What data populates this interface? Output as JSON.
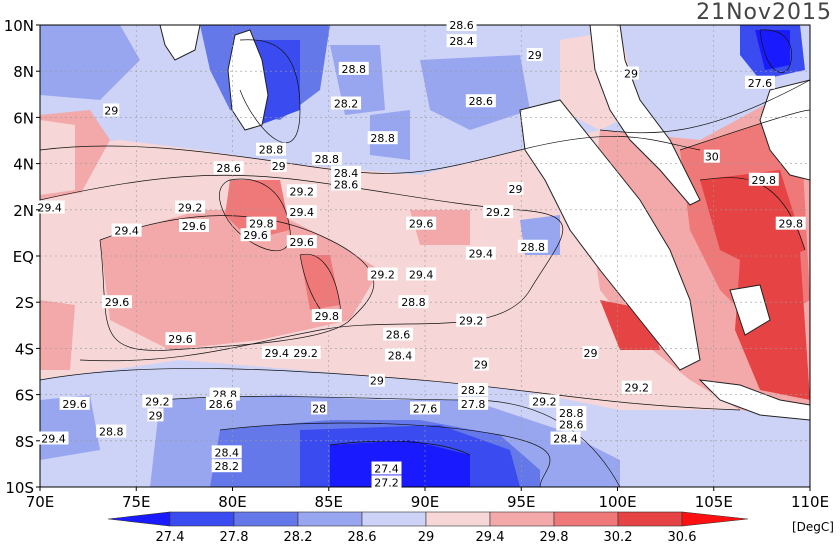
{
  "title": "21Nov2015",
  "unit_label": "[DegC]",
  "lat_labels": [
    "10N",
    "8N",
    "6N",
    "4N",
    "2N",
    "EQ",
    "2S",
    "4S",
    "6S",
    "8S",
    "10S"
  ],
  "lon_labels": [
    "70E",
    "75E",
    "80E",
    "85E",
    "90E",
    "95E",
    "100E",
    "105E",
    "110E"
  ],
  "colorbar": {
    "labels": [
      "27.4",
      "27.8",
      "28.2",
      "28.6",
      "29",
      "29.4",
      "29.8",
      "30.2",
      "30.6"
    ],
    "colors": [
      "#1a1aff",
      "#3a4cf0",
      "#6478ea",
      "#98a6f0",
      "#cdd3f6",
      "#f6d6d6",
      "#f3a9a9",
      "#ef7878",
      "#e64444",
      "#ff1010"
    ]
  },
  "contour_labels": [
    {
      "text": "28.6",
      "lon": 91.9,
      "lat": 10.0
    },
    {
      "text": "28.4",
      "lon": 91.9,
      "lat": 9.3
    },
    {
      "text": "29",
      "lon": 95.7,
      "lat": 8.7
    },
    {
      "text": "28.8",
      "lon": 86.3,
      "lat": 8.1
    },
    {
      "text": "29",
      "lon": 100.7,
      "lat": 7.9
    },
    {
      "text": "27.6",
      "lon": 107.4,
      "lat": 7.5
    },
    {
      "text": "28.2",
      "lon": 85.9,
      "lat": 6.6
    },
    {
      "text": "28.6",
      "lon": 92.9,
      "lat": 6.7
    },
    {
      "text": "29",
      "lon": 73.7,
      "lat": 6.3
    },
    {
      "text": "28.8",
      "lon": 87.8,
      "lat": 5.1
    },
    {
      "text": "28.8",
      "lon": 82.0,
      "lat": 4.6
    },
    {
      "text": "28.8",
      "lon": 84.9,
      "lat": 4.2
    },
    {
      "text": "28.6",
      "lon": 79.8,
      "lat": 3.8
    },
    {
      "text": "29",
      "lon": 82.4,
      "lat": 3.9
    },
    {
      "text": "28.4",
      "lon": 85.9,
      "lat": 3.6
    },
    {
      "text": "28.6",
      "lon": 85.9,
      "lat": 3.1
    },
    {
      "text": "30",
      "lon": 104.9,
      "lat": 4.3
    },
    {
      "text": "29.8",
      "lon": 107.6,
      "lat": 3.3
    },
    {
      "text": "29",
      "lon": 94.7,
      "lat": 2.9
    },
    {
      "text": "29.2",
      "lon": 83.6,
      "lat": 2.8
    },
    {
      "text": "29.4",
      "lon": 70.5,
      "lat": 2.1
    },
    {
      "text": "29.2",
      "lon": 77.8,
      "lat": 2.1
    },
    {
      "text": "29.4",
      "lon": 83.6,
      "lat": 1.9
    },
    {
      "text": "29.2",
      "lon": 93.8,
      "lat": 1.9
    },
    {
      "text": "29.8",
      "lon": 81.5,
      "lat": 1.4
    },
    {
      "text": "29.6",
      "lon": 81.2,
      "lat": 0.9
    },
    {
      "text": "29.6",
      "lon": 78.0,
      "lat": 1.3
    },
    {
      "text": "29.6",
      "lon": 89.8,
      "lat": 1.4
    },
    {
      "text": "29.4",
      "lon": 74.5,
      "lat": 1.1
    },
    {
      "text": "29.8",
      "lon": 109.0,
      "lat": 1.4
    },
    {
      "text": "29.6",
      "lon": 83.6,
      "lat": 0.6
    },
    {
      "text": "28.8",
      "lon": 95.6,
      "lat": 0.4
    },
    {
      "text": "29.4",
      "lon": 92.9,
      "lat": 0.1
    },
    {
      "text": "29.2",
      "lon": 87.8,
      "lat": -0.8
    },
    {
      "text": "29.4",
      "lon": 89.8,
      "lat": -0.8
    },
    {
      "text": "28.8",
      "lon": 89.4,
      "lat": -2.0
    },
    {
      "text": "29.6",
      "lon": 74.0,
      "lat": -2.0
    },
    {
      "text": "29.8",
      "lon": 84.9,
      "lat": -2.6
    },
    {
      "text": "29.2",
      "lon": 92.4,
      "lat": -2.8
    },
    {
      "text": "28.6",
      "lon": 88.6,
      "lat": -3.4
    },
    {
      "text": "29.6",
      "lon": 77.3,
      "lat": -3.6
    },
    {
      "text": "29.4",
      "lon": 82.3,
      "lat": -4.2
    },
    {
      "text": "29.2",
      "lon": 83.8,
      "lat": -4.2
    },
    {
      "text": "28.4",
      "lon": 88.7,
      "lat": -4.3
    },
    {
      "text": "29",
      "lon": 98.6,
      "lat": -4.2
    },
    {
      "text": "29",
      "lon": 92.9,
      "lat": -4.7
    },
    {
      "text": "29",
      "lon": 87.5,
      "lat": -5.4
    },
    {
      "text": "29.2",
      "lon": 101.0,
      "lat": -5.7
    },
    {
      "text": "28.2",
      "lon": 92.5,
      "lat": -5.8
    },
    {
      "text": "28.8",
      "lon": 79.6,
      "lat": -6.0
    },
    {
      "text": "27.8",
      "lon": 92.5,
      "lat": -6.4
    },
    {
      "text": "28.6",
      "lon": 79.4,
      "lat": -6.4
    },
    {
      "text": "29.6",
      "lon": 71.8,
      "lat": -6.4
    },
    {
      "text": "29.2",
      "lon": 76.1,
      "lat": -6.3
    },
    {
      "text": "29.2",
      "lon": 96.2,
      "lat": -6.3
    },
    {
      "text": "27.6",
      "lon": 90.0,
      "lat": -6.6
    },
    {
      "text": "28",
      "lon": 84.5,
      "lat": -6.6
    },
    {
      "text": "28.8",
      "lon": 97.6,
      "lat": -6.8
    },
    {
      "text": "29",
      "lon": 76.0,
      "lat": -6.9
    },
    {
      "text": "28.6",
      "lon": 97.6,
      "lat": -7.3
    },
    {
      "text": "28.8",
      "lon": 73.7,
      "lat": -7.6
    },
    {
      "text": "28.4",
      "lon": 97.3,
      "lat": -7.9
    },
    {
      "text": "29.4",
      "lon": 70.7,
      "lat": -7.9
    },
    {
      "text": "28.4",
      "lon": 79.7,
      "lat": -8.5
    },
    {
      "text": "28.2",
      "lon": 79.7,
      "lat": -9.1
    },
    {
      "text": "27.4",
      "lon": 88.0,
      "lat": -9.2
    },
    {
      "text": "27.2",
      "lon": 88.0,
      "lat": -9.8
    }
  ]
}
